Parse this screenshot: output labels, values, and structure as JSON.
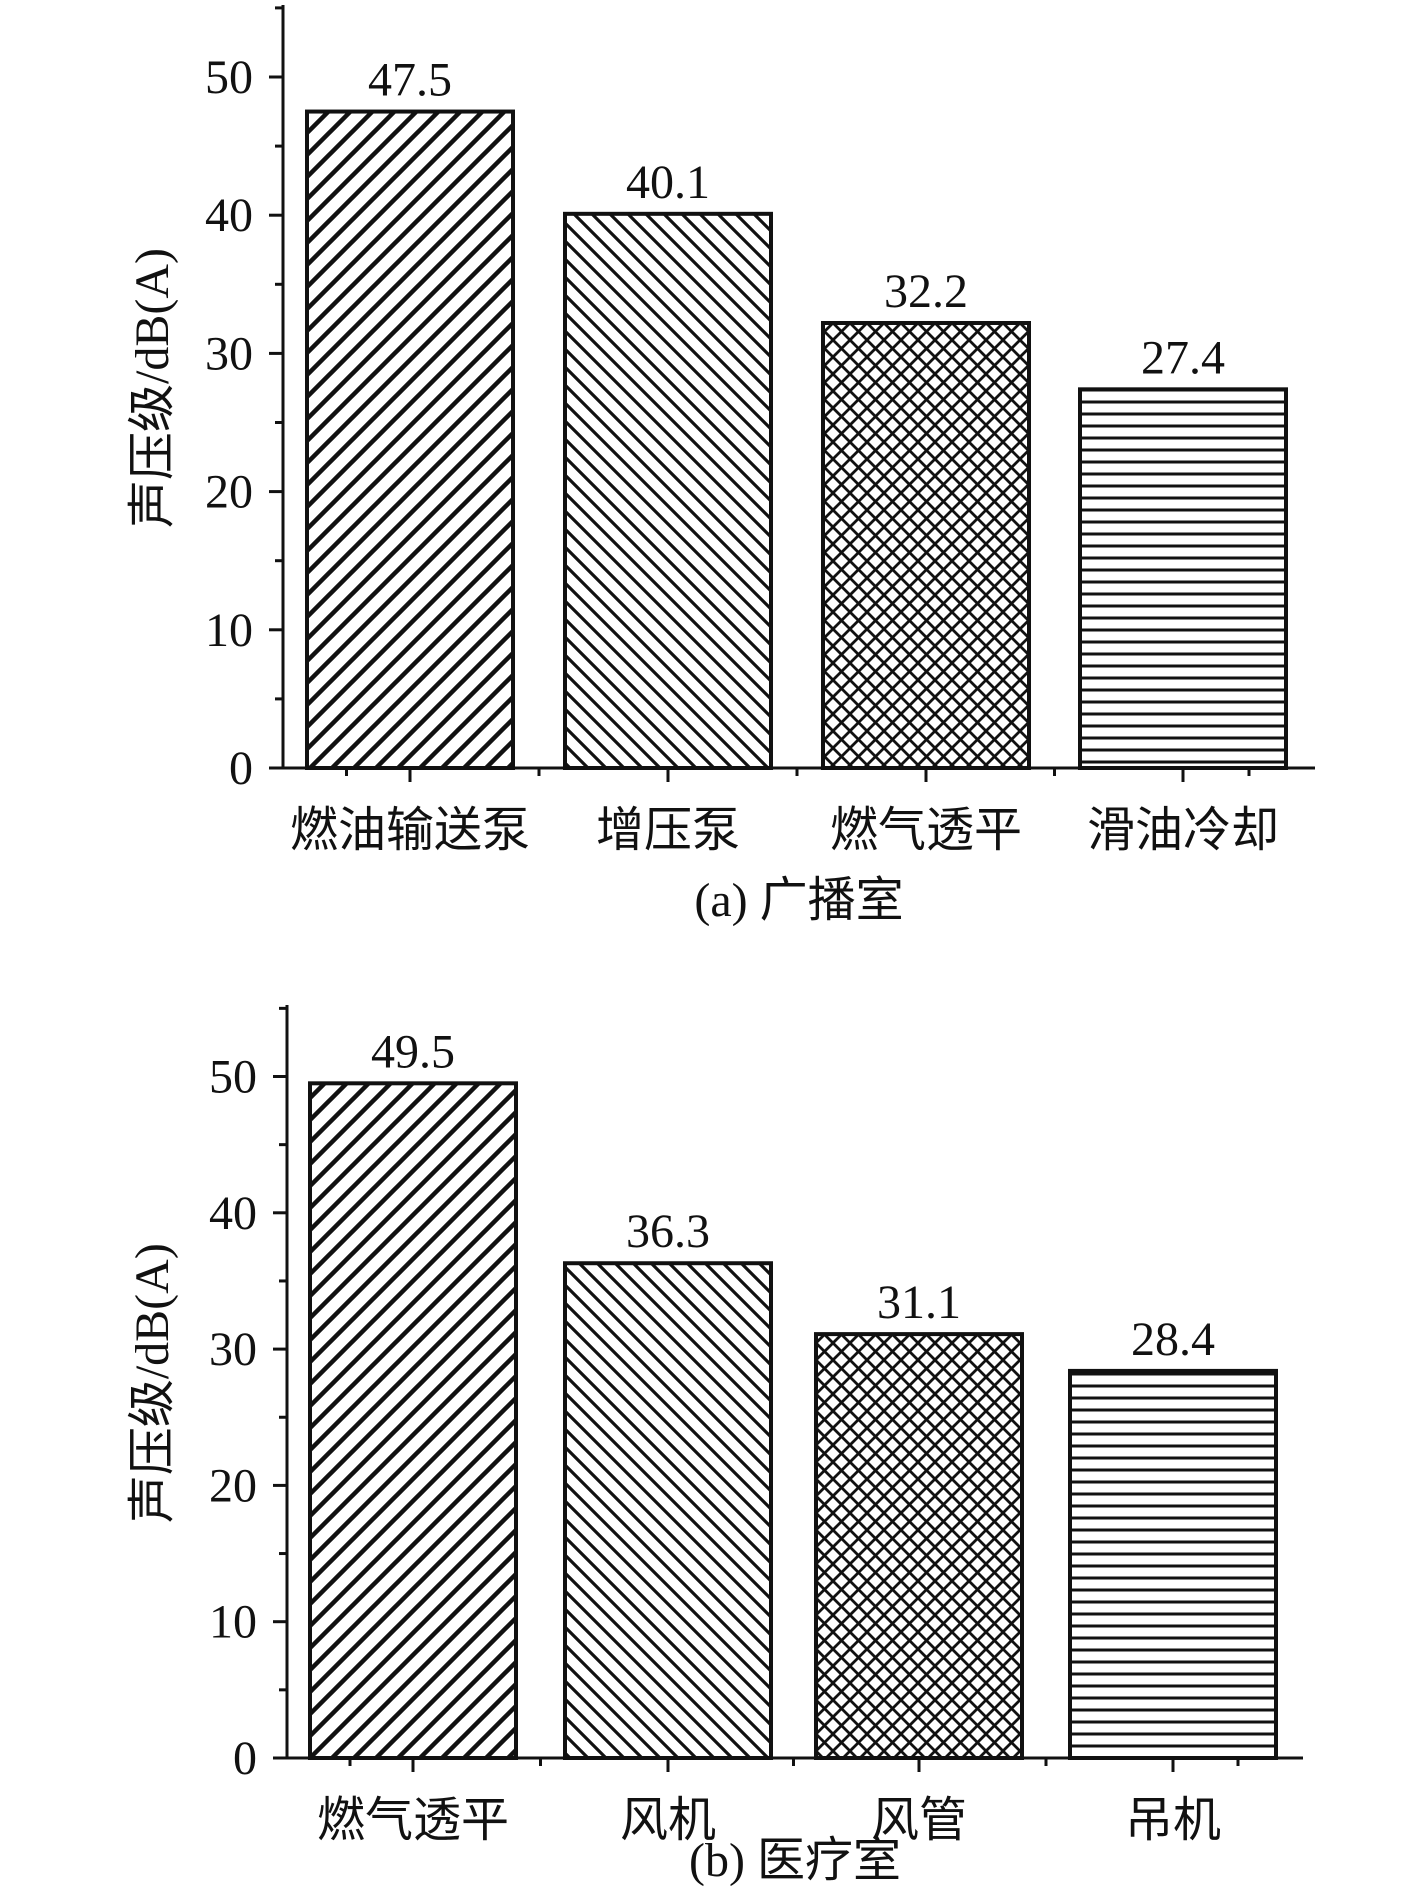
{
  "chart_data": [
    {
      "type": "bar",
      "caption": "(a) 广播室",
      "ylabel": "声压级/dB(A)",
      "xlabel": "",
      "ylim": [
        0,
        55
      ],
      "yticks": [
        0,
        10,
        20,
        30,
        40,
        50
      ],
      "categories": [
        "燃油输送泵",
        "增压泵",
        "燃气透平",
        "滑油冷却"
      ],
      "values": [
        47.5,
        40.1,
        32.2,
        27.4
      ],
      "value_labels": [
        "47.5",
        "40.1",
        "32.2",
        "27.4"
      ],
      "patterns": [
        "diagonal-up",
        "diagonal-down",
        "crosshatch",
        "horizontal"
      ],
      "grid": false,
      "legend": "none"
    },
    {
      "type": "bar",
      "caption": "(b) 医疗室",
      "ylabel": "声压级/dB(A)",
      "xlabel": "",
      "ylim": [
        0,
        55
      ],
      "yticks": [
        0,
        10,
        20,
        30,
        40,
        50
      ],
      "categories": [
        "燃气透平",
        "风机",
        "风管",
        "吊机"
      ],
      "values": [
        49.5,
        36.3,
        31.1,
        28.4
      ],
      "value_labels": [
        "49.5",
        "36.3",
        "31.1",
        "28.4"
      ],
      "patterns": [
        "diagonal-up",
        "diagonal-down",
        "crosshatch",
        "horizontal"
      ],
      "grid": false,
      "legend": "none"
    }
  ]
}
